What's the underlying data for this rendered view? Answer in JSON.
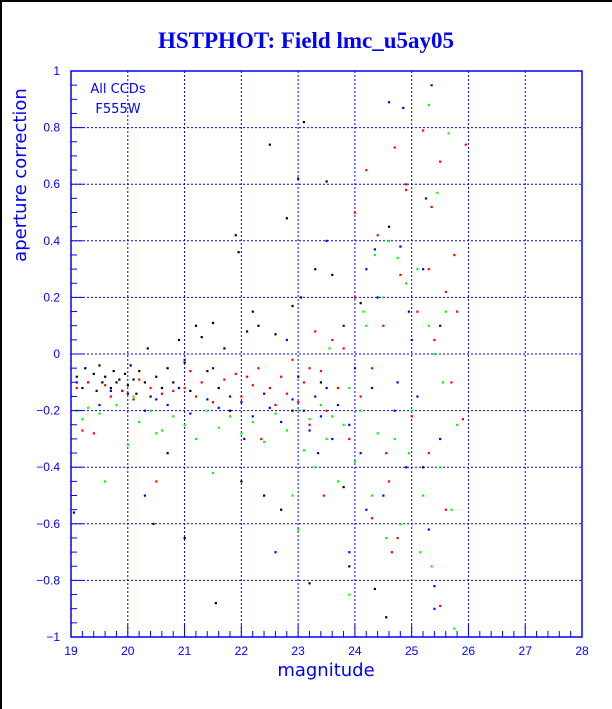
{
  "chart_data": {
    "type": "scatter",
    "title": "HSTPHOT: Field lmc_u5ay05",
    "xlabel": "magnitude",
    "ylabel": "aperture correction",
    "annotations": [
      "All CCDs",
      "F555W"
    ],
    "xlim": [
      19,
      28
    ],
    "ylim": [
      -1,
      1
    ],
    "x_ticks": [
      "19",
      "20",
      "21",
      "22",
      "23",
      "24",
      "25",
      "26",
      "27",
      "28"
    ],
    "y_ticks": [
      "1",
      "0.8",
      "0.6",
      "0.4",
      "0.2",
      "0",
      "−0.2",
      "−0.4",
      "−0.6",
      "−0.8",
      "−1"
    ],
    "grid": true,
    "axis_color": "#0000ff",
    "series": [
      {
        "color": "#000000",
        "points": [
          [
            19.1,
            -0.08
          ],
          [
            19.2,
            -0.12
          ],
          [
            19.25,
            -0.05
          ],
          [
            19.3,
            -0.1
          ],
          [
            19.4,
            -0.07
          ],
          [
            19.45,
            -0.13
          ],
          [
            19.5,
            -0.04
          ],
          [
            19.55,
            -0.1
          ],
          [
            19.6,
            -0.08
          ],
          [
            19.7,
            -0.12
          ],
          [
            19.75,
            -0.06
          ],
          [
            19.8,
            -0.1
          ],
          [
            19.85,
            -0.09
          ],
          [
            19.9,
            -0.13
          ],
          [
            19.95,
            -0.07
          ],
          [
            20.0,
            -0.11
          ],
          [
            20.05,
            -0.04
          ],
          [
            20.1,
            -0.09
          ],
          [
            20.15,
            -0.14
          ],
          [
            20.2,
            -0.06
          ],
          [
            20.3,
            -0.1
          ],
          [
            20.35,
            0.02
          ],
          [
            20.4,
            -0.15
          ],
          [
            20.5,
            -0.08
          ],
          [
            20.6,
            -0.12
          ],
          [
            20.7,
            -0.05
          ],
          [
            20.8,
            -0.1
          ],
          [
            20.9,
            0.05
          ],
          [
            21.0,
            -0.03
          ],
          [
            21.1,
            -0.13
          ],
          [
            21.2,
            0.1
          ],
          [
            21.3,
            0.06
          ],
          [
            21.4,
            -0.06
          ],
          [
            21.5,
            0.11
          ],
          [
            21.6,
            -0.12
          ],
          [
            21.7,
            0.02
          ],
          [
            21.8,
            -0.2
          ],
          [
            21.9,
            0.42
          ],
          [
            21.95,
            0.36
          ],
          [
            22.1,
            0.08
          ],
          [
            22.3,
            0.1
          ],
          [
            22.5,
            0.74
          ],
          [
            22.6,
            0.07
          ],
          [
            22.8,
            0.48
          ],
          [
            22.9,
            0.17
          ],
          [
            23.0,
            0.62
          ],
          [
            23.1,
            0.82
          ],
          [
            23.2,
            -0.81
          ],
          [
            23.3,
            0.3
          ],
          [
            23.4,
            -0.1
          ],
          [
            23.5,
            0.61
          ],
          [
            23.6,
            0.28
          ],
          [
            21.55,
            -0.88
          ],
          [
            20.45,
            -0.6
          ],
          [
            19.05,
            -0.56
          ],
          [
            22.0,
            -0.45
          ],
          [
            22.4,
            -0.5
          ],
          [
            23.8,
            -0.47
          ],
          [
            24.35,
            -0.83
          ],
          [
            24.55,
            -0.93
          ],
          [
            24.1,
            0.18
          ],
          [
            23.05,
            0.2
          ],
          [
            22.2,
            0.15
          ],
          [
            21.0,
            -0.65
          ],
          [
            20.7,
            -0.35
          ],
          [
            22.7,
            -0.55
          ],
          [
            24.6,
            0.45
          ],
          [
            25.2,
            -0.4
          ],
          [
            22.9,
            -0.2
          ],
          [
            23.9,
            -0.75
          ]
        ]
      },
      {
        "color": "#ff0000",
        "points": [
          [
            19.1,
            -0.12
          ],
          [
            19.3,
            -0.1
          ],
          [
            19.4,
            -0.28
          ],
          [
            19.6,
            -0.11
          ],
          [
            19.7,
            -0.15
          ],
          [
            19.9,
            -0.13
          ],
          [
            20.1,
            -0.16
          ],
          [
            20.2,
            -0.09
          ],
          [
            20.4,
            -0.12
          ],
          [
            20.6,
            -0.14
          ],
          [
            20.8,
            -0.13
          ],
          [
            21.0,
            -0.12
          ],
          [
            21.1,
            -0.06
          ],
          [
            21.3,
            -0.1
          ],
          [
            21.5,
            -0.17
          ],
          [
            21.7,
            -0.09
          ],
          [
            21.9,
            -0.07
          ],
          [
            22.0,
            -0.15
          ],
          [
            22.2,
            -0.11
          ],
          [
            22.3,
            -0.05
          ],
          [
            22.5,
            -0.12
          ],
          [
            22.6,
            -0.18
          ],
          [
            22.7,
            -0.08
          ],
          [
            22.8,
            -0.14
          ],
          [
            22.9,
            -0.02
          ],
          [
            23.0,
            -0.17
          ],
          [
            23.1,
            -0.1
          ],
          [
            23.2,
            -0.25
          ],
          [
            23.3,
            0.08
          ],
          [
            23.4,
            -0.06
          ],
          [
            23.5,
            -0.2
          ],
          [
            23.6,
            0.05
          ],
          [
            23.7,
            -0.12
          ],
          [
            23.8,
            0.02
          ],
          [
            23.9,
            -0.3
          ],
          [
            24.0,
            0.2
          ],
          [
            24.1,
            -0.15
          ],
          [
            24.2,
            0.65
          ],
          [
            24.3,
            -0.05
          ],
          [
            24.4,
            0.42
          ],
          [
            24.5,
            0.1
          ],
          [
            24.6,
            -0.45
          ],
          [
            24.7,
            0.73
          ],
          [
            24.75,
            -0.65
          ],
          [
            24.8,
            0.28
          ],
          [
            24.9,
            0.58
          ],
          [
            25.0,
            -0.22
          ],
          [
            25.1,
            0.15
          ],
          [
            25.2,
            0.79
          ],
          [
            25.3,
            -0.35
          ],
          [
            25.35,
            0.52
          ],
          [
            25.4,
            0.05
          ],
          [
            25.5,
            -0.89
          ],
          [
            25.5,
            0.68
          ],
          [
            25.6,
            0.22
          ],
          [
            25.7,
            -0.1
          ],
          [
            25.75,
            0.35
          ],
          [
            25.9,
            -0.23
          ],
          [
            25.95,
            0.74
          ],
          [
            25.8,
            0.15
          ],
          [
            24.65,
            -0.7
          ],
          [
            24.3,
            -0.58
          ],
          [
            23.45,
            -0.5
          ],
          [
            22.35,
            -0.3
          ],
          [
            20.5,
            -0.45
          ],
          [
            19.2,
            -0.27
          ],
          [
            21.2,
            -0.15
          ],
          [
            21.8,
            -0.22
          ],
          [
            24.0,
            0.5
          ],
          [
            25.6,
            -0.55
          ],
          [
            24.9,
            0.6
          ],
          [
            25.3,
            0.3
          ],
          [
            24.55,
            -0.35
          ],
          [
            23.2,
            -0.05
          ],
          [
            22.1,
            -0.08
          ]
        ]
      },
      {
        "color": "#0000ff",
        "points": [
          [
            19.1,
            -0.1
          ],
          [
            19.5,
            -0.18
          ],
          [
            19.7,
            -0.13
          ],
          [
            20.0,
            -0.14
          ],
          [
            20.3,
            -0.2
          ],
          [
            20.5,
            -0.16
          ],
          [
            20.7,
            -0.18
          ],
          [
            20.9,
            -0.12
          ],
          [
            21.1,
            -0.21
          ],
          [
            21.4,
            -0.16
          ],
          [
            21.6,
            -0.19
          ],
          [
            21.8,
            -0.15
          ],
          [
            22.0,
            -0.17
          ],
          [
            22.2,
            -0.22
          ],
          [
            22.4,
            -0.14
          ],
          [
            22.5,
            -0.19
          ],
          [
            22.7,
            -0.24
          ],
          [
            22.9,
            -0.16
          ],
          [
            23.0,
            -0.08
          ],
          [
            23.1,
            -0.2
          ],
          [
            23.2,
            -0.27
          ],
          [
            23.3,
            -0.15
          ],
          [
            23.4,
            -0.22
          ],
          [
            23.5,
            -0.12
          ],
          [
            23.6,
            -0.3
          ],
          [
            23.7,
            -0.18
          ],
          [
            23.8,
            0.1
          ],
          [
            23.9,
            -0.25
          ],
          [
            24.0,
            -0.05
          ],
          [
            24.1,
            -0.35
          ],
          [
            24.2,
            0.3
          ],
          [
            24.3,
            -0.12
          ],
          [
            24.4,
            0.2
          ],
          [
            24.5,
            -0.5
          ],
          [
            24.6,
            0.89
          ],
          [
            24.7,
            -0.2
          ],
          [
            24.8,
            0.38
          ],
          [
            24.9,
            -0.4
          ],
          [
            25.0,
            0.05
          ],
          [
            25.1,
            -0.15
          ],
          [
            25.2,
            0.3
          ],
          [
            25.3,
            -0.62
          ],
          [
            25.35,
            0.95
          ],
          [
            25.4,
            -0.9
          ],
          [
            25.4,
            -0.82
          ],
          [
            25.5,
            0.1
          ],
          [
            25.5,
            -0.3
          ],
          [
            24.85,
            0.87
          ],
          [
            24.35,
            0.37
          ],
          [
            23.5,
            0.4
          ],
          [
            22.6,
            -0.7
          ],
          [
            20.3,
            -0.5
          ],
          [
            21.0,
            -0.02
          ],
          [
            22.8,
            0.05
          ],
          [
            23.9,
            -0.7
          ],
          [
            24.2,
            -0.55
          ],
          [
            24.75,
            -0.1
          ],
          [
            25.25,
            0.55
          ],
          [
            23.35,
            -0.35
          ],
          [
            22.05,
            -0.3
          ],
          [
            21.5,
            -0.05
          ],
          [
            24.95,
            0.15
          ]
        ]
      },
      {
        "color": "#00ff00",
        "points": [
          [
            19.1,
            -0.2
          ],
          [
            19.2,
            -0.23
          ],
          [
            19.3,
            -0.19
          ],
          [
            19.5,
            -0.21
          ],
          [
            19.6,
            -0.45
          ],
          [
            19.8,
            -0.18
          ],
          [
            20.0,
            -0.32
          ],
          [
            20.2,
            -0.24
          ],
          [
            20.4,
            -0.2
          ],
          [
            20.6,
            -0.27
          ],
          [
            20.8,
            -0.22
          ],
          [
            21.0,
            -0.25
          ],
          [
            21.2,
            -0.3
          ],
          [
            21.4,
            -0.2
          ],
          [
            21.6,
            -0.26
          ],
          [
            21.8,
            -0.22
          ],
          [
            22.0,
            -0.28
          ],
          [
            22.2,
            -0.24
          ],
          [
            22.4,
            -0.31
          ],
          [
            22.6,
            -0.21
          ],
          [
            22.8,
            -0.27
          ],
          [
            23.0,
            -0.2
          ],
          [
            23.1,
            -0.34
          ],
          [
            23.2,
            -0.23
          ],
          [
            23.3,
            -0.4
          ],
          [
            23.4,
            -0.18
          ],
          [
            23.5,
            -0.3
          ],
          [
            23.6,
            -0.22
          ],
          [
            23.7,
            -0.45
          ],
          [
            23.8,
            -0.25
          ],
          [
            23.9,
            -0.12
          ],
          [
            24.0,
            -0.38
          ],
          [
            24.1,
            -0.2
          ],
          [
            24.2,
            0.1
          ],
          [
            24.3,
            -0.5
          ],
          [
            24.4,
            -0.28
          ],
          [
            24.5,
            0.2
          ],
          [
            24.6,
            0.4
          ],
          [
            24.7,
            -0.3
          ],
          [
            24.8,
            -0.6
          ],
          [
            24.9,
            0.25
          ],
          [
            25.0,
            -0.2
          ],
          [
            25.1,
            0.3
          ],
          [
            25.2,
            -0.5
          ],
          [
            25.3,
            0.1
          ],
          [
            25.35,
            -0.75
          ],
          [
            25.4,
            0.0
          ],
          [
            25.5,
            -0.4
          ],
          [
            25.6,
            0.15
          ],
          [
            25.65,
            0.78
          ],
          [
            25.7,
            -0.55
          ],
          [
            25.75,
            -0.97
          ],
          [
            25.8,
            -0.25
          ],
          [
            25.3,
            0.88
          ],
          [
            25.45,
            0.57
          ],
          [
            24.75,
            0.34
          ],
          [
            24.55,
            -0.65
          ],
          [
            23.9,
            -0.85
          ],
          [
            23.0,
            -0.62
          ],
          [
            21.5,
            -0.42
          ],
          [
            20.5,
            -0.28
          ],
          [
            20.1,
            -0.15
          ],
          [
            22.9,
            -0.5
          ],
          [
            24.15,
            0.15
          ],
          [
            25.15,
            -0.7
          ],
          [
            24.35,
            0.35
          ],
          [
            25.55,
            -0.1
          ],
          [
            24.95,
            -0.35
          ],
          [
            23.55,
            0.02
          ]
        ]
      }
    ]
  }
}
